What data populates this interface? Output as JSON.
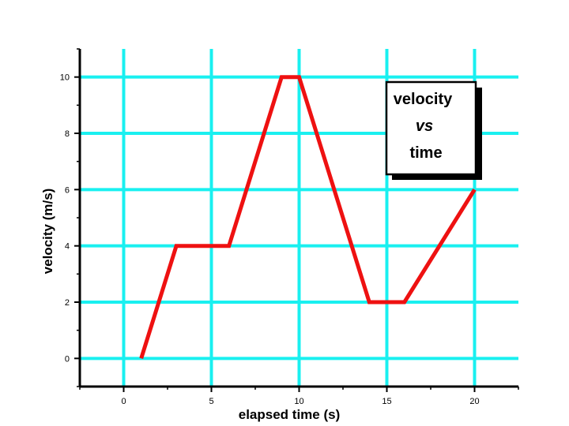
{
  "chart_data": {
    "type": "line",
    "xlabel": "elapsed time (s)",
    "ylabel": "velocity (m/s)",
    "xlim": [
      -2.5,
      22.5
    ],
    "ylim": [
      -1,
      11
    ],
    "xticks": [
      0,
      5,
      10,
      15,
      20
    ],
    "yticks": [
      0,
      2,
      4,
      6,
      8,
      10
    ],
    "grid": true,
    "series": [
      {
        "x": [
          1,
          3,
          6,
          9,
          10,
          14,
          16,
          20
        ],
        "y": [
          0,
          4,
          4,
          10,
          10,
          2,
          2,
          6
        ]
      }
    ],
    "legend_box": {
      "position": "top-right",
      "lines": [
        "velocity",
        "vs",
        "time"
      ]
    },
    "colors": {
      "line": "#ee1111",
      "grid": "#19f0f0",
      "axis": "#000000"
    }
  }
}
